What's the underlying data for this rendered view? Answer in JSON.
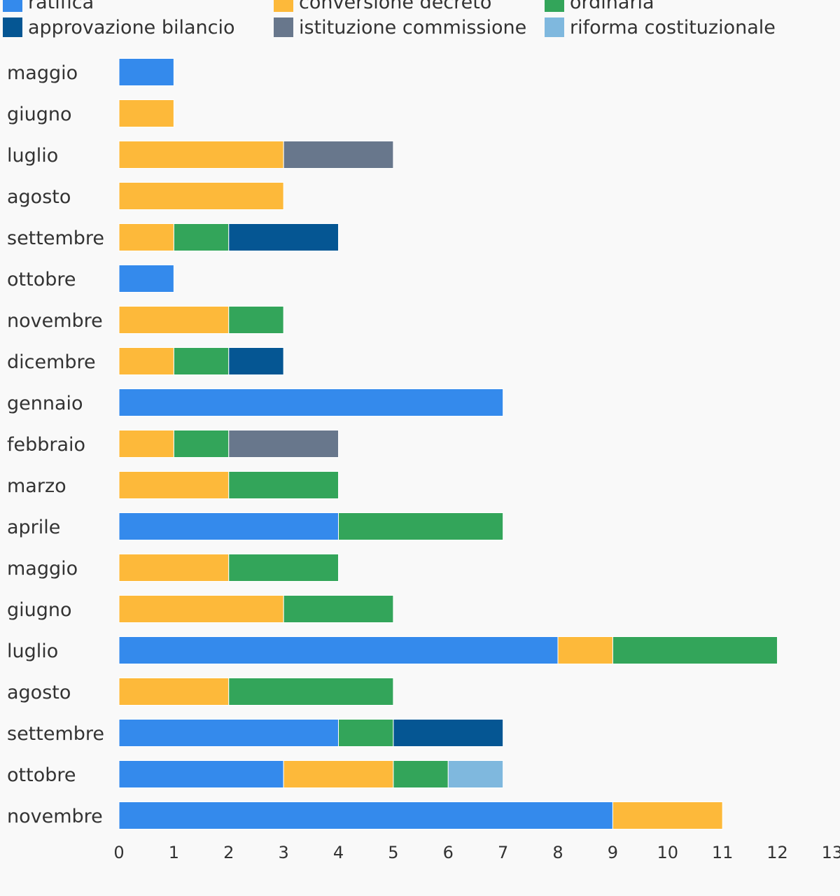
{
  "chart_data": {
    "type": "bar",
    "orientation": "horizontal",
    "stacked": true,
    "categories": [
      "maggio",
      "giugno",
      "luglio",
      "agosto",
      "settembre",
      "ottobre",
      "novembre",
      "dicembre",
      "gennaio",
      "febbraio",
      "marzo",
      "aprile",
      "maggio",
      "giugno",
      "luglio",
      "agosto",
      "settembre",
      "ottobre",
      "novembre"
    ],
    "series": [
      {
        "name": "ratifica",
        "color": "#348aec",
        "values": [
          1,
          0,
          0,
          0,
          0,
          1,
          0,
          0,
          7,
          0,
          0,
          4,
          0,
          0,
          8,
          0,
          4,
          3,
          9
        ]
      },
      {
        "name": "conversione decreto",
        "color": "#fdb93a",
        "values": [
          0,
          1,
          3,
          3,
          1,
          0,
          2,
          1,
          0,
          1,
          2,
          0,
          2,
          3,
          1,
          2,
          0,
          2,
          2
        ]
      },
      {
        "name": "ordinaria",
        "color": "#33a55a",
        "values": [
          0,
          0,
          0,
          0,
          1,
          0,
          1,
          1,
          0,
          1,
          2,
          3,
          2,
          2,
          3,
          3,
          1,
          1,
          0
        ]
      },
      {
        "name": "approvazione bilancio",
        "color": "#055693",
        "values": [
          0,
          0,
          0,
          0,
          2,
          0,
          0,
          1,
          0,
          0,
          0,
          0,
          0,
          0,
          0,
          0,
          2,
          0,
          0
        ]
      },
      {
        "name": "istituzione commissione",
        "color": "#68778c",
        "values": [
          0,
          0,
          2,
          0,
          0,
          0,
          0,
          0,
          0,
          2,
          0,
          0,
          0,
          0,
          0,
          0,
          0,
          0,
          0
        ]
      },
      {
        "name": "riforma costituzionale",
        "color": "#7fb8de",
        "values": [
          0,
          0,
          0,
          0,
          0,
          0,
          0,
          0,
          0,
          0,
          0,
          0,
          0,
          0,
          0,
          0,
          0,
          1,
          0
        ]
      }
    ],
    "xlim": [
      0,
      13
    ],
    "xticks": [
      "0",
      "1",
      "2",
      "3",
      "4",
      "5",
      "6",
      "7",
      "8",
      "9",
      "10",
      "11",
      "12",
      "13"
    ],
    "grid": false,
    "legend_position": "top",
    "title": "",
    "xlabel": "",
    "ylabel": ""
  }
}
